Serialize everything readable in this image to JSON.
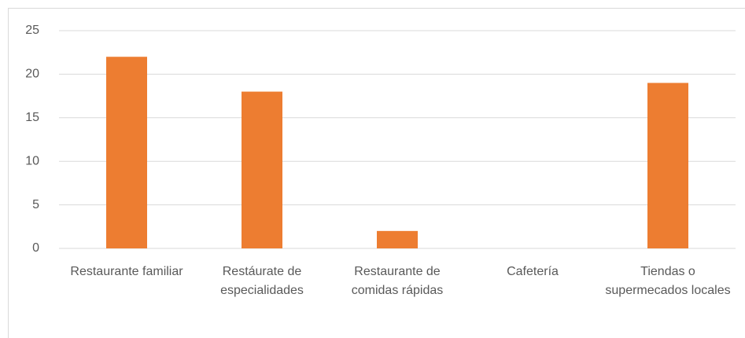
{
  "chart_data": {
    "type": "bar",
    "categories": [
      "Restaurante familiar",
      "Restáurate de especialidades",
      "Restaurante de comidas rápidas",
      "Cafetería",
      "Tiendas o supermecados locales"
    ],
    "values": [
      22,
      18,
      2,
      0,
      19
    ],
    "color": "#ed7d31",
    "ylim": [
      0,
      25
    ],
    "yticks": [
      0,
      5,
      10,
      15,
      20,
      25
    ],
    "grid": true
  }
}
